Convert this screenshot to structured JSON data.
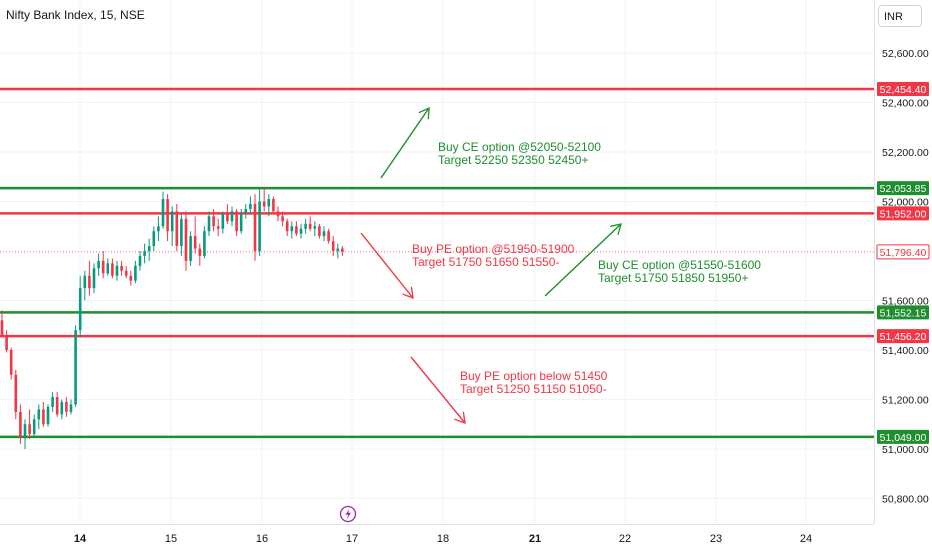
{
  "header": {
    "title": "Nifty Bank Index, 15, NSE",
    "currency": "INR"
  },
  "chart_data": {
    "type": "candlestick",
    "ylim": [
      50700,
      52780
    ],
    "y_ticks": [
      {
        "value": 52600,
        "label": "52,600.00"
      },
      {
        "value": 52400,
        "label": "52,400.00"
      },
      {
        "value": 52200,
        "label": "52,200.00"
      },
      {
        "value": 52000,
        "label": "52,000.00"
      },
      {
        "value": 51600,
        "label": "51,600.00"
      },
      {
        "value": 51400,
        "label": "51,400.00"
      },
      {
        "value": 51200,
        "label": "51,200.00"
      },
      {
        "value": 51000,
        "label": "51,000.00"
      },
      {
        "value": 50800,
        "label": "50,800.00"
      }
    ],
    "x_ticks": [
      {
        "label": "14",
        "bold": true
      },
      {
        "label": "15"
      },
      {
        "label": "16"
      },
      {
        "label": "17"
      },
      {
        "label": "18"
      },
      {
        "label": "21",
        "bold": true
      },
      {
        "label": "22"
      },
      {
        "label": "23"
      },
      {
        "label": "24"
      }
    ],
    "levels": [
      {
        "value": 52454.4,
        "label": "52,454.40",
        "color": "#f23645"
      },
      {
        "value": 52053.85,
        "label": "52,053.85",
        "color": "#1e8e2f"
      },
      {
        "value": 51952.0,
        "label": "51,952.00",
        "color": "#f23645"
      },
      {
        "value": 51552.15,
        "label": "51,552.15",
        "color": "#1e8e2f"
      },
      {
        "value": 51456.2,
        "label": "51,456.20",
        "color": "#f23645"
      },
      {
        "value": 51049.0,
        "label": "51,049.00",
        "color": "#1e8e2f"
      }
    ],
    "last_price": {
      "value": 51796.4,
      "label": "51,796.40",
      "color": "#f23645"
    },
    "annotations": [
      {
        "lines": [
          "Buy CE option @52050-52100",
          "Target 52250 52350 52450+"
        ],
        "color": "#1e8e2f"
      },
      {
        "lines": [
          "Buy PE option @51950-51900",
          "Target 51750 51650 51550-"
        ],
        "color": "#f23645"
      },
      {
        "lines": [
          "Buy CE option @51550-51600",
          "Target 51750 51850 51950+"
        ],
        "color": "#1e8e2f"
      },
      {
        "lines": [
          "Buy PE option below 51450",
          "Target 51250 51150 51050-"
        ],
        "color": "#f23645"
      }
    ],
    "arrows": [
      {
        "direction": "up",
        "color": "#1e8e2f"
      },
      {
        "direction": "down",
        "color": "#f23645"
      },
      {
        "direction": "up",
        "color": "#1e8e2f"
      },
      {
        "direction": "down",
        "color": "#f23645"
      }
    ],
    "event_marker": {
      "icon": "lightning-icon",
      "color": "#9c27b0"
    },
    "candles": [
      [
        51520,
        51560,
        51450,
        51460
      ],
      [
        51460,
        51480,
        51390,
        51400
      ],
      [
        51400,
        51410,
        51280,
        51300
      ],
      [
        51300,
        51320,
        51120,
        51150
      ],
      [
        51150,
        51180,
        51020,
        51050
      ],
      [
        51050,
        51120,
        51000,
        51100
      ],
      [
        51100,
        51160,
        51040,
        51060
      ],
      [
        51060,
        51140,
        51050,
        51120
      ],
      [
        51120,
        51180,
        51080,
        51160
      ],
      [
        51160,
        51190,
        51090,
        51100
      ],
      [
        51100,
        51180,
        51090,
        51170
      ],
      [
        51170,
        51230,
        51150,
        51210
      ],
      [
        51210,
        51230,
        51130,
        51140
      ],
      [
        51140,
        51200,
        51120,
        51190
      ],
      [
        51190,
        51210,
        51130,
        51150
      ],
      [
        51150,
        51200,
        51140,
        51180
      ],
      [
        51180,
        51500,
        51170,
        51480
      ],
      [
        51480,
        51700,
        51450,
        51650
      ],
      [
        51650,
        51720,
        51600,
        51700
      ],
      [
        51700,
        51760,
        51620,
        51650
      ],
      [
        51650,
        51750,
        51630,
        51730
      ],
      [
        51730,
        51790,
        51700,
        51760
      ],
      [
        51760,
        51800,
        51690,
        51710
      ],
      [
        51710,
        51770,
        51700,
        51750
      ],
      [
        51750,
        51770,
        51690,
        51700
      ],
      [
        51700,
        51760,
        51680,
        51740
      ],
      [
        51740,
        51760,
        51700,
        51720
      ],
      [
        51720,
        51740,
        51690,
        51700
      ],
      [
        51700,
        51720,
        51660,
        51680
      ],
      [
        51680,
        51760,
        51670,
        51740
      ],
      [
        51740,
        51800,
        51720,
        51780
      ],
      [
        51780,
        51830,
        51750,
        51800
      ],
      [
        51800,
        51850,
        51760,
        51820
      ],
      [
        51820,
        51900,
        51800,
        51880
      ],
      [
        51880,
        51940,
        51840,
        51900
      ],
      [
        51900,
        52040,
        51890,
        52010
      ],
      [
        52010,
        52030,
        51840,
        51880
      ],
      [
        51880,
        51980,
        51820,
        51960
      ],
      [
        51960,
        51990,
        51800,
        51820
      ],
      [
        51820,
        51950,
        51780,
        51930
      ],
      [
        51930,
        51960,
        51720,
        51760
      ],
      [
        51760,
        51880,
        51740,
        51860
      ],
      [
        51860,
        51940,
        51790,
        51810
      ],
      [
        51810,
        51830,
        51740,
        51780
      ],
      [
        51780,
        51900,
        51770,
        51880
      ],
      [
        51880,
        51960,
        51860,
        51940
      ],
      [
        51940,
        51970,
        51880,
        51900
      ],
      [
        51900,
        51930,
        51860,
        51890
      ],
      [
        51890,
        51960,
        51870,
        51950
      ],
      [
        51950,
        51990,
        51910,
        51920
      ],
      [
        51920,
        51980,
        51900,
        51960
      ],
      [
        51960,
        51970,
        51860,
        51880
      ],
      [
        51880,
        51970,
        51870,
        51950
      ],
      [
        51950,
        51990,
        51930,
        51970
      ],
      [
        51970,
        52020,
        51950,
        51990
      ],
      [
        51990,
        52030,
        51760,
        51800
      ],
      [
        51800,
        52050,
        51780,
        52000
      ],
      [
        52000,
        52060,
        51960,
        51980
      ],
      [
        51980,
        52030,
        51940,
        52010
      ],
      [
        52010,
        52020,
        51950,
        51960
      ],
      [
        51960,
        51980,
        51920,
        51940
      ],
      [
        51940,
        51960,
        51900,
        51920
      ],
      [
        51920,
        51930,
        51860,
        51880
      ],
      [
        51880,
        51920,
        51850,
        51900
      ],
      [
        51900,
        51920,
        51860,
        51870
      ],
      [
        51870,
        51910,
        51850,
        51890
      ],
      [
        51890,
        51930,
        51870,
        51910
      ],
      [
        51910,
        51940,
        51880,
        51890
      ],
      [
        51890,
        51920,
        51860,
        51900
      ],
      [
        51900,
        51910,
        51850,
        51860
      ],
      [
        51860,
        51900,
        51840,
        51880
      ],
      [
        51880,
        51890,
        51830,
        51840
      ],
      [
        51840,
        51860,
        51780,
        51800
      ],
      [
        51800,
        51830,
        51770,
        51810
      ],
      [
        51810,
        51820,
        51780,
        51796
      ]
    ]
  }
}
